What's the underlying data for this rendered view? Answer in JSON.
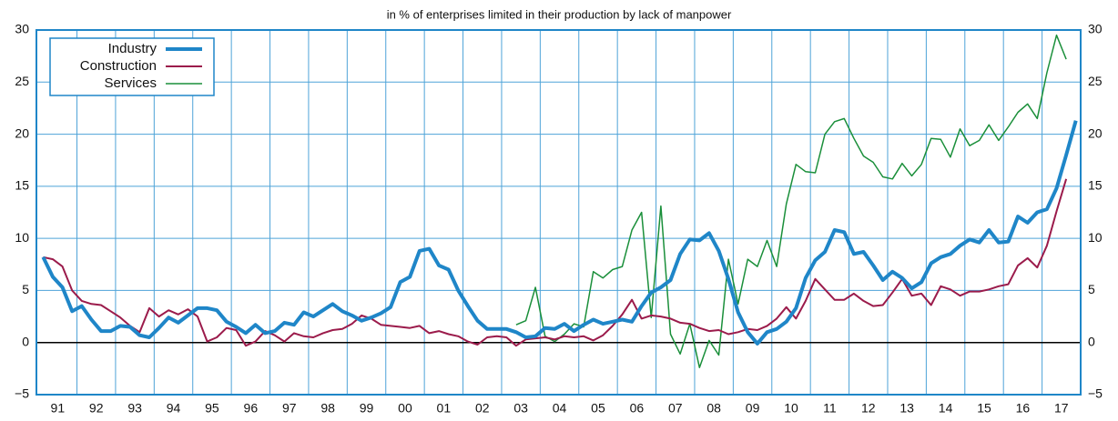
{
  "chart_data": {
    "type": "line",
    "subtitle": "in % of enterprises limited in their production by lack of manpower",
    "xlim": [
      1990.95,
      2018.0
    ],
    "xticks": [
      {
        "value": 1991.5,
        "label": "91"
      },
      {
        "value": 1992.5,
        "label": "92"
      },
      {
        "value": 1993.5,
        "label": "93"
      },
      {
        "value": 1994.5,
        "label": "94"
      },
      {
        "value": 1995.5,
        "label": "95"
      },
      {
        "value": 1996.5,
        "label": "96"
      },
      {
        "value": 1997.5,
        "label": "97"
      },
      {
        "value": 1998.5,
        "label": "98"
      },
      {
        "value": 1999.5,
        "label": "99"
      },
      {
        "value": 2000.5,
        "label": "00"
      },
      {
        "value": 2001.5,
        "label": "01"
      },
      {
        "value": 2002.5,
        "label": "02"
      },
      {
        "value": 2003.5,
        "label": "03"
      },
      {
        "value": 2004.5,
        "label": "04"
      },
      {
        "value": 2005.5,
        "label": "05"
      },
      {
        "value": 2006.5,
        "label": "06"
      },
      {
        "value": 2007.5,
        "label": "07"
      },
      {
        "value": 2008.5,
        "label": "08"
      },
      {
        "value": 2009.5,
        "label": "09"
      },
      {
        "value": 2010.5,
        "label": "10"
      },
      {
        "value": 2011.5,
        "label": "11"
      },
      {
        "value": 2012.5,
        "label": "12"
      },
      {
        "value": 2013.5,
        "label": "13"
      },
      {
        "value": 2014.5,
        "label": "14"
      },
      {
        "value": 2015.5,
        "label": "15"
      },
      {
        "value": 2016.5,
        "label": "16"
      },
      {
        "value": 2017.5,
        "label": "17"
      }
    ],
    "xgrid": [
      1992,
      1993,
      1994,
      1995,
      1996,
      1997,
      1998,
      1999,
      2000,
      2001,
      2002,
      2003,
      2004,
      2005,
      2006,
      2007,
      2008,
      2009,
      2010,
      2011,
      2012,
      2013,
      2014,
      2015,
      2016,
      2017
    ],
    "ylim": [
      -5,
      30
    ],
    "yticks": [
      {
        "value": -5,
        "label": "−5"
      },
      0,
      5,
      10,
      15,
      20,
      25,
      30
    ],
    "grid": true,
    "legend": "upper left",
    "x": [
      1991.125,
      1991.375,
      1991.625,
      1991.875,
      1992.125,
      1992.375,
      1992.625,
      1992.875,
      1993.125,
      1993.375,
      1993.625,
      1993.875,
      1994.125,
      1994.375,
      1994.625,
      1994.875,
      1995.125,
      1995.375,
      1995.625,
      1995.875,
      1996.125,
      1996.375,
      1996.625,
      1996.875,
      1997.125,
      1997.375,
      1997.625,
      1997.875,
      1998.125,
      1998.375,
      1998.625,
      1998.875,
      1999.125,
      1999.375,
      1999.625,
      1999.875,
      2000.125,
      2000.375,
      2000.625,
      2000.875,
      2001.125,
      2001.375,
      2001.625,
      2001.875,
      2002.125,
      2002.375,
      2002.625,
      2002.875,
      2003.125,
      2003.375,
      2003.625,
      2003.875,
      2004.125,
      2004.375,
      2004.625,
      2004.875,
      2005.125,
      2005.375,
      2005.625,
      2005.875,
      2006.125,
      2006.375,
      2006.625,
      2006.875,
      2007.125,
      2007.375,
      2007.625,
      2007.875,
      2008.125,
      2008.375,
      2008.625,
      2008.875,
      2009.125,
      2009.375,
      2009.625,
      2009.875,
      2010.125,
      2010.375,
      2010.625,
      2010.875,
      2011.125,
      2011.375,
      2011.625,
      2011.875,
      2012.125,
      2012.375,
      2012.625,
      2012.875,
      2013.125,
      2013.375,
      2013.625,
      2013.875,
      2014.125,
      2014.375,
      2014.625,
      2014.875,
      2015.125,
      2015.375,
      2015.625,
      2015.875,
      2016.125,
      2016.375,
      2016.625,
      2016.875,
      2017.125,
      2017.375,
      2017.625,
      2017.875
    ],
    "series": [
      {
        "name": "Industry",
        "color": "#1f86c8",
        "width": 4,
        "values": [
          8.2,
          6.3,
          5.3,
          3.0,
          3.5,
          2.2,
          1.1,
          1.1,
          1.6,
          1.5,
          0.7,
          0.5,
          1.4,
          2.4,
          1.9,
          2.6,
          3.3,
          3.3,
          3.1,
          2.0,
          1.5,
          0.9,
          1.7,
          0.9,
          1.1,
          1.9,
          1.7,
          2.9,
          2.5,
          3.1,
          3.7,
          3.0,
          2.6,
          2.1,
          2.4,
          2.8,
          3.4,
          5.8,
          6.3,
          8.8,
          9.0,
          7.4,
          7.0,
          5.0,
          3.5,
          2.1,
          1.3,
          1.3,
          1.3,
          1.0,
          0.5,
          0.6,
          1.4,
          1.3,
          1.8,
          1.1,
          1.7,
          2.2,
          1.8,
          2.0,
          2.2,
          2.0,
          3.5,
          4.8,
          5.3,
          6.0,
          8.5,
          9.9,
          9.8,
          10.5,
          8.8,
          6.1,
          2.9,
          1.0,
          -0.1,
          1.0,
          1.3,
          2.0,
          3.3,
          6.2,
          7.9,
          8.7,
          10.8,
          10.6,
          8.5,
          8.7,
          7.4,
          6.0,
          6.8,
          6.2,
          5.2,
          5.8,
          7.6,
          8.2,
          8.5,
          9.3,
          9.9,
          9.6,
          10.8,
          9.6,
          9.7,
          12.1,
          11.5,
          12.5,
          12.8,
          14.8,
          18.0,
          21.3
        ]
      },
      {
        "name": "Construction",
        "color": "#9b1b4b",
        "width": 2,
        "values": [
          8.2,
          8.0,
          7.3,
          5.0,
          4.0,
          3.7,
          3.6,
          3.0,
          2.4,
          1.6,
          1.0,
          3.3,
          2.5,
          3.1,
          2.7,
          3.2,
          2.5,
          0.1,
          0.5,
          1.4,
          1.2,
          -0.3,
          0.1,
          1.1,
          0.7,
          0.1,
          0.9,
          0.6,
          0.5,
          0.9,
          1.2,
          1.3,
          1.8,
          2.6,
          2.3,
          1.7,
          1.6,
          1.5,
          1.4,
          1.6,
          0.9,
          1.1,
          0.8,
          0.6,
          0.1,
          -0.2,
          0.5,
          0.6,
          0.5,
          -0.3,
          0.3,
          0.4,
          0.5,
          0.3,
          0.6,
          0.5,
          0.6,
          0.2,
          0.7,
          1.6,
          2.7,
          4.1,
          2.3,
          2.6,
          2.5,
          2.3,
          1.9,
          1.8,
          1.4,
          1.1,
          1.2,
          0.8,
          1.0,
          1.3,
          1.2,
          1.6,
          2.3,
          3.4,
          2.3,
          4.0,
          6.1,
          5.1,
          4.1,
          4.1,
          4.7,
          4.0,
          3.5,
          3.6,
          4.8,
          6.1,
          4.5,
          4.7,
          3.6,
          5.4,
          5.1,
          4.5,
          4.9,
          4.9,
          5.1,
          5.4,
          5.6,
          7.4,
          8.1,
          7.2,
          9.3,
          12.6,
          15.7,
          null
        ]
      },
      {
        "name": "Services",
        "color": "#1a8f3a",
        "width": 1.5,
        "values": [
          null,
          null,
          null,
          null,
          null,
          null,
          null,
          null,
          null,
          null,
          null,
          null,
          null,
          null,
          null,
          null,
          null,
          null,
          null,
          null,
          null,
          null,
          null,
          null,
          null,
          null,
          null,
          null,
          null,
          null,
          null,
          null,
          null,
          null,
          null,
          null,
          null,
          null,
          null,
          null,
          null,
          null,
          null,
          null,
          null,
          null,
          null,
          null,
          null,
          1.7,
          2.1,
          5.3,
          0.6,
          0.1,
          0.8,
          1.8,
          1.5,
          6.8,
          6.2,
          7.0,
          7.3,
          10.8,
          12.5,
          2.4,
          13.1,
          0.8,
          -1.1,
          1.8,
          -2.4,
          0.2,
          -1.2,
          8.0,
          3.7,
          8.0,
          7.3,
          9.8,
          7.3,
          13.3,
          17.1,
          16.4,
          16.3,
          20.0,
          21.2,
          21.5,
          19.6,
          17.9,
          17.3,
          15.9,
          15.7,
          17.2,
          16.0,
          17.1,
          19.6,
          19.5,
          17.8,
          20.5,
          18.9,
          19.4,
          20.9,
          19.4,
          20.7,
          22.1,
          22.9,
          21.5,
          25.9,
          29.5,
          27.2,
          null
        ]
      }
    ]
  }
}
